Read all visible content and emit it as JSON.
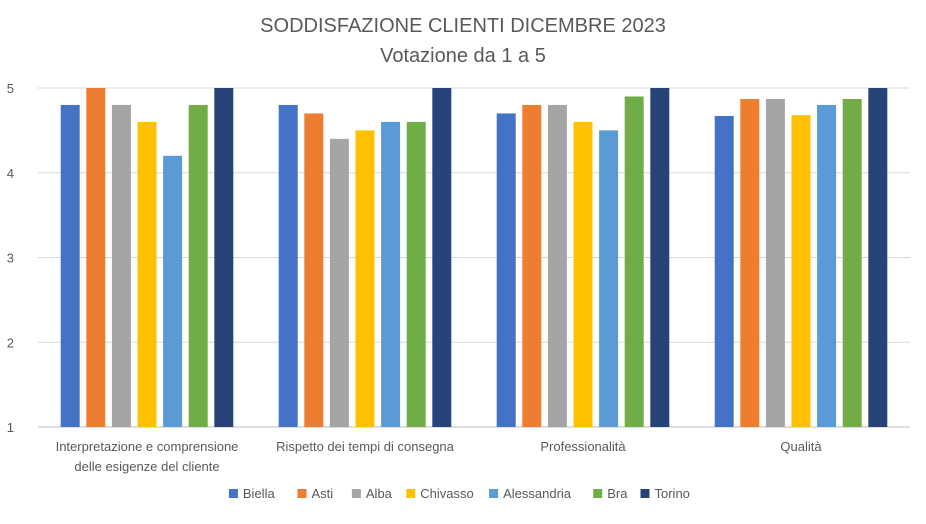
{
  "chart_data": {
    "type": "bar",
    "title": "SODDISFAZIONE CLIENTI DICEMBRE 2023",
    "subtitle": "Votazione da 1 a 5",
    "categories": [
      [
        "Interpretazione e comprensione",
        "delle esigenze del cliente"
      ],
      [
        "Rispetto dei tempi di consegna"
      ],
      [
        "Professionalità"
      ],
      [
        "Qualità"
      ]
    ],
    "ylim": [
      1,
      5
    ],
    "yticks": [
      1,
      2,
      3,
      4,
      5
    ],
    "grid": true,
    "legend_position": "bottom",
    "series": [
      {
        "name": "Biella",
        "color": "#4472C4",
        "values": [
          4.8,
          4.8,
          4.7,
          4.67
        ]
      },
      {
        "name": "Asti",
        "color": "#ED7D31",
        "values": [
          5.0,
          4.7,
          4.8,
          4.87
        ]
      },
      {
        "name": "Alba",
        "color": "#A5A5A5",
        "values": [
          4.8,
          4.4,
          4.8,
          4.87
        ]
      },
      {
        "name": "Chivasso",
        "color": "#FFC000",
        "values": [
          4.6,
          4.5,
          4.6,
          4.68
        ]
      },
      {
        "name": "Alessandria",
        "color": "#5B9BD5",
        "values": [
          4.2,
          4.6,
          4.5,
          4.8
        ]
      },
      {
        "name": "Bra",
        "color": "#70AD47",
        "values": [
          4.8,
          4.6,
          4.9,
          4.87
        ]
      },
      {
        "name": "Torino",
        "color": "#264478",
        "values": [
          5.0,
          5.0,
          5.0,
          5.0
        ]
      }
    ]
  }
}
